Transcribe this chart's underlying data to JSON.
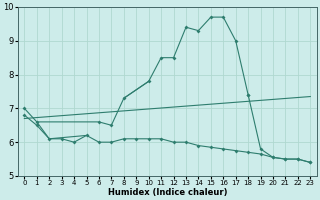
{
  "xlabel": "Humidex (Indice chaleur)",
  "background_color": "#cdecea",
  "grid_color": "#b0d8d0",
  "line_color": "#2e7d6e",
  "x_values": [
    0,
    1,
    2,
    3,
    4,
    5,
    6,
    7,
    8,
    9,
    10,
    11,
    12,
    13,
    14,
    15,
    16,
    17,
    18,
    19,
    20,
    21,
    22,
    23
  ],
  "curve_main": [
    7.0,
    6.6,
    null,
    null,
    null,
    null,
    6.6,
    6.5,
    7.3,
    null,
    7.8,
    8.5,
    8.5,
    9.4,
    9.3,
    9.7,
    9.7,
    9.0,
    7.4,
    null,
    null,
    null,
    null,
    null
  ],
  "curve_lower": [
    6.8,
    6.5,
    6.1,
    6.1,
    6.0,
    6.2,
    6.0,
    6.0,
    6.1,
    6.1,
    6.1,
    6.1,
    6.0,
    6.0,
    5.9,
    5.85,
    5.8,
    5.75,
    5.7,
    5.65,
    5.55,
    5.5,
    5.5,
    5.4
  ],
  "curve_mid": [
    null,
    null,
    null,
    null,
    null,
    null,
    null,
    null,
    null,
    null,
    null,
    null,
    null,
    null,
    null,
    null,
    null,
    null,
    7.4,
    5.8,
    5.55,
    5.5,
    5.5,
    5.4
  ],
  "straight_line": [
    [
      0,
      6.7
    ],
    [
      23,
      7.35
    ]
  ],
  "ylim": [
    5.0,
    10.0
  ],
  "xlim": [
    -0.5,
    23.5
  ],
  "yticks": [
    5,
    6,
    7,
    8,
    9,
    10
  ],
  "xticks": [
    0,
    1,
    2,
    3,
    4,
    5,
    6,
    7,
    8,
    9,
    10,
    11,
    12,
    13,
    14,
    15,
    16,
    17,
    18,
    19,
    20,
    21,
    22,
    23
  ],
  "tick_fontsize": 5,
  "xlabel_fontsize": 6
}
